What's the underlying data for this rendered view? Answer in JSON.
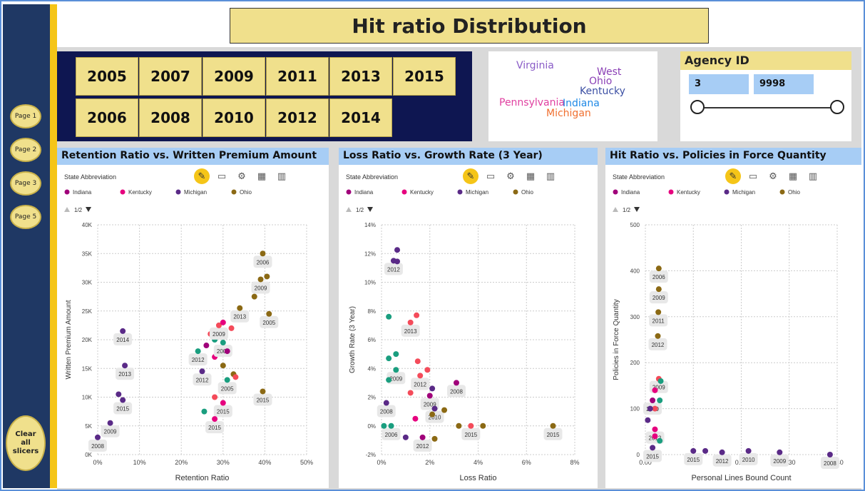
{
  "title": "Hit ratio Distribution",
  "nav": {
    "pages": [
      "Page 1",
      "Page 2",
      "Page 3",
      "Page 5"
    ],
    "clear_label_lines": [
      "Clear",
      "all",
      "slicers"
    ]
  },
  "year_slicer": {
    "row1": [
      "2005",
      "2007",
      "2009",
      "2011",
      "2013",
      "2015"
    ],
    "row2": [
      "2006",
      "2008",
      "2010",
      "2012",
      "2014"
    ]
  },
  "word_cloud": [
    {
      "text": "Virginia",
      "color": "#8a5cc7"
    },
    {
      "text": "West",
      "color": "#8a3fb5"
    },
    {
      "text": "Ohio",
      "color": "#8a3fb5"
    },
    {
      "text": "Kentucky",
      "color": "#3b4fa3"
    },
    {
      "text": "Pennsylvania",
      "color": "#e040a0"
    },
    {
      "text": "Indiana",
      "color": "#1e88e5"
    },
    {
      "text": "Michigan",
      "color": "#f07030"
    }
  ],
  "agency": {
    "title": "Agency ID",
    "min": "3",
    "max": "9998"
  },
  "legend": {
    "title": "State Abbreviation",
    "page": "1/2",
    "items": [
      {
        "name": "Indiana",
        "color": "#a0007a"
      },
      {
        "name": "Kentucky",
        "color": "#e6007e"
      },
      {
        "name": "Michigan",
        "color": "#5a2a87"
      },
      {
        "name": "Ohio",
        "color": "#8b6914"
      }
    ]
  },
  "colors": {
    "teal": "#1a9e7f",
    "red": "#f44b5a"
  },
  "chart_data": [
    {
      "type": "scatter",
      "title": "Retention Ratio vs. Written Premium Amount",
      "xlabel": "Retention Ratio",
      "ylabel": "Written Premium Amount",
      "xlim": [
        0,
        0.5
      ],
      "ylim": [
        0,
        40000
      ],
      "xticks": [
        "0%",
        "10%",
        "20%",
        "30%",
        "40%",
        "50%"
      ],
      "yticks": [
        "0K",
        "5K",
        "10K",
        "15K",
        "20K",
        "25K",
        "30K",
        "35K",
        "40K"
      ],
      "points": [
        {
          "x": 0.0,
          "y": 3000,
          "c": "#5a2a87",
          "label": "2008"
        },
        {
          "x": 0.03,
          "y": 5500,
          "c": "#5a2a87",
          "label": "2009"
        },
        {
          "x": 0.05,
          "y": 10500,
          "c": "#5a2a87",
          "label": ""
        },
        {
          "x": 0.06,
          "y": 9500,
          "c": "#5a2a87",
          "label": "2015"
        },
        {
          "x": 0.065,
          "y": 15500,
          "c": "#5a2a87",
          "label": "2013"
        },
        {
          "x": 0.06,
          "y": 21500,
          "c": "#5a2a87",
          "label": "2014"
        },
        {
          "x": 0.24,
          "y": 18000,
          "c": "#1a9e7f",
          "label": "2012"
        },
        {
          "x": 0.25,
          "y": 14500,
          "c": "#5a2a87",
          "label": "2012"
        },
        {
          "x": 0.26,
          "y": 19000,
          "c": "#a0007a",
          "label": ""
        },
        {
          "x": 0.27,
          "y": 21000,
          "c": "#f44b5a",
          "label": ""
        },
        {
          "x": 0.28,
          "y": 20000,
          "c": "#1a9e7f",
          "label": ""
        },
        {
          "x": 0.28,
          "y": 17000,
          "c": "#e6007e",
          "label": ""
        },
        {
          "x": 0.29,
          "y": 22500,
          "c": "#f44b5a",
          "label": "2009"
        },
        {
          "x": 0.3,
          "y": 23000,
          "c": "#e6007e",
          "label": ""
        },
        {
          "x": 0.3,
          "y": 19500,
          "c": "#1a9e7f",
          "label": "2009"
        },
        {
          "x": 0.31,
          "y": 18000,
          "c": "#a0007a",
          "label": ""
        },
        {
          "x": 0.32,
          "y": 22000,
          "c": "#f44b5a",
          "label": ""
        },
        {
          "x": 0.3,
          "y": 15500,
          "c": "#8b6914",
          "label": ""
        },
        {
          "x": 0.31,
          "y": 13000,
          "c": "#1a9e7f",
          "label": "2005"
        },
        {
          "x": 0.325,
          "y": 14000,
          "c": "#8b6914",
          "label": ""
        },
        {
          "x": 0.33,
          "y": 13500,
          "c": "#f44b5a",
          "label": ""
        },
        {
          "x": 0.28,
          "y": 10000,
          "c": "#f44b5a",
          "label": ""
        },
        {
          "x": 0.3,
          "y": 9000,
          "c": "#e6007e",
          "label": "2015"
        },
        {
          "x": 0.255,
          "y": 7500,
          "c": "#1a9e7f",
          "label": ""
        },
        {
          "x": 0.28,
          "y": 6200,
          "c": "#e6007e",
          "label": "2015"
        },
        {
          "x": 0.34,
          "y": 25500,
          "c": "#8b6914",
          "label": "2013"
        },
        {
          "x": 0.375,
          "y": 27500,
          "c": "#8b6914",
          "label": ""
        },
        {
          "x": 0.39,
          "y": 30500,
          "c": "#8b6914",
          "label": "2009"
        },
        {
          "x": 0.405,
          "y": 31000,
          "c": "#8b6914",
          "label": ""
        },
        {
          "x": 0.395,
          "y": 35000,
          "c": "#8b6914",
          "label": "2006"
        },
        {
          "x": 0.41,
          "y": 24500,
          "c": "#8b6914",
          "label": "2005"
        },
        {
          "x": 0.395,
          "y": 11000,
          "c": "#8b6914",
          "label": "2015"
        }
      ]
    },
    {
      "type": "scatter",
      "title": "Loss Ratio vs. Growth Rate (3 Year)",
      "xlabel": "Loss Ratio",
      "ylabel": "Growth Rate (3 Year)",
      "xlim": [
        0,
        0.08
      ],
      "ylim": [
        -0.02,
        0.14
      ],
      "xticks": [
        "0%",
        "2%",
        "4%",
        "6%",
        "8%"
      ],
      "yticks": [
        "-2%",
        "0%",
        "2%",
        "4%",
        "6%",
        "8%",
        "10%",
        "12%",
        "14%"
      ],
      "points": [
        {
          "x": 0.005,
          "y": 0.115,
          "c": "#5a2a87",
          "label": "2012"
        },
        {
          "x": 0.0065,
          "y": 0.1225,
          "c": "#5a2a87",
          "label": ""
        },
        {
          "x": 0.0065,
          "y": 0.1145,
          "c": "#5a2a87",
          "label": ""
        },
        {
          "x": 0.003,
          "y": 0.076,
          "c": "#1a9e7f",
          "label": ""
        },
        {
          "x": 0.012,
          "y": 0.072,
          "c": "#f44b5a",
          "label": "2013"
        },
        {
          "x": 0.0145,
          "y": 0.077,
          "c": "#f44b5a",
          "label": ""
        },
        {
          "x": 0.003,
          "y": 0.047,
          "c": "#1a9e7f",
          "label": ""
        },
        {
          "x": 0.006,
          "y": 0.05,
          "c": "#1a9e7f",
          "label": ""
        },
        {
          "x": 0.006,
          "y": 0.039,
          "c": "#1a9e7f",
          "label": "2009"
        },
        {
          "x": 0.003,
          "y": 0.032,
          "c": "#1a9e7f",
          "label": ""
        },
        {
          "x": 0.015,
          "y": 0.045,
          "c": "#f44b5a",
          "label": ""
        },
        {
          "x": 0.016,
          "y": 0.035,
          "c": "#f44b5a",
          "label": "2012"
        },
        {
          "x": 0.019,
          "y": 0.039,
          "c": "#f44b5a",
          "label": ""
        },
        {
          "x": 0.021,
          "y": 0.026,
          "c": "#5a2a87",
          "label": ""
        },
        {
          "x": 0.02,
          "y": 0.021,
          "c": "#a0007a",
          "label": "2009"
        },
        {
          "x": 0.031,
          "y": 0.03,
          "c": "#a0007a",
          "label": "2008"
        },
        {
          "x": 0.012,
          "y": 0.023,
          "c": "#f44b5a",
          "label": ""
        },
        {
          "x": 0.002,
          "y": 0.016,
          "c": "#5a2a87",
          "label": "2008"
        },
        {
          "x": 0.014,
          "y": 0.005,
          "c": "#e6007e",
          "label": ""
        },
        {
          "x": 0.022,
          "y": 0.012,
          "c": "#5a2a87",
          "label": "2010"
        },
        {
          "x": 0.021,
          "y": 0.008,
          "c": "#8b6914",
          "label": ""
        },
        {
          "x": 0.026,
          "y": 0.011,
          "c": "#8b6914",
          "label": ""
        },
        {
          "x": 0.004,
          "y": 0.0,
          "c": "#1a9e7f",
          "label": "2006"
        },
        {
          "x": 0.001,
          "y": 0.0,
          "c": "#1a9e7f",
          "label": ""
        },
        {
          "x": 0.01,
          "y": -0.008,
          "c": "#5a2a87",
          "label": ""
        },
        {
          "x": 0.017,
          "y": -0.008,
          "c": "#a0007a",
          "label": "2012"
        },
        {
          "x": 0.022,
          "y": -0.009,
          "c": "#8b6914",
          "label": ""
        },
        {
          "x": 0.032,
          "y": 0.0,
          "c": "#8b6914",
          "label": ""
        },
        {
          "x": 0.037,
          "y": 0.0,
          "c": "#f44b5a",
          "label": "2015"
        },
        {
          "x": 0.042,
          "y": 0.0,
          "c": "#8b6914",
          "label": ""
        },
        {
          "x": 0.071,
          "y": 0.0,
          "c": "#8b6914",
          "label": "2015"
        }
      ]
    },
    {
      "type": "scatter",
      "title": "Hit Ratio vs. Policies in Force Quantity",
      "xlabel": "Personal Lines Bound Count",
      "ylabel": "Policies in Force Quantity",
      "xlim": [
        0,
        0.4
      ],
      "ylim": [
        0,
        500
      ],
      "xticks": [
        "0.00",
        "0.10",
        "0.20",
        "0.30",
        "0.40"
      ],
      "yticks": [
        "0",
        "100",
        "200",
        "300",
        "400",
        "500"
      ],
      "points": [
        {
          "x": 0.028,
          "y": 405,
          "c": "#8b6914",
          "label": "2006"
        },
        {
          "x": 0.028,
          "y": 360,
          "c": "#8b6914",
          "label": "2009"
        },
        {
          "x": 0.027,
          "y": 310,
          "c": "#8b6914",
          "label": "2011"
        },
        {
          "x": 0.026,
          "y": 258,
          "c": "#8b6914",
          "label": "2012"
        },
        {
          "x": 0.028,
          "y": 165,
          "c": "#f44b5a",
          "label": "2009"
        },
        {
          "x": 0.032,
          "y": 160,
          "c": "#1a9e7f",
          "label": ""
        },
        {
          "x": 0.02,
          "y": 140,
          "c": "#e6007e",
          "label": ""
        },
        {
          "x": 0.015,
          "y": 118,
          "c": "#a0007a",
          "label": "2009"
        },
        {
          "x": 0.03,
          "y": 118,
          "c": "#1a9e7f",
          "label": ""
        },
        {
          "x": 0.02,
          "y": 100,
          "c": "#f44b5a",
          "label": ""
        },
        {
          "x": 0.01,
          "y": 100,
          "c": "#5a2a87",
          "label": ""
        },
        {
          "x": 0.005,
          "y": 75,
          "c": "#5a2a87",
          "label": ""
        },
        {
          "x": 0.02,
          "y": 55,
          "c": "#e6007e",
          "label": "2012"
        },
        {
          "x": 0.02,
          "y": 40,
          "c": "#e6007e",
          "label": ""
        },
        {
          "x": 0.03,
          "y": 30,
          "c": "#1a9e7f",
          "label": ""
        },
        {
          "x": 0.015,
          "y": 15,
          "c": "#5a2a87",
          "label": "2015"
        },
        {
          "x": 0.1,
          "y": 8,
          "c": "#5a2a87",
          "label": "2015"
        },
        {
          "x": 0.125,
          "y": 8,
          "c": "#5a2a87",
          "label": ""
        },
        {
          "x": 0.16,
          "y": 5,
          "c": "#5a2a87",
          "label": "2012"
        },
        {
          "x": 0.215,
          "y": 8,
          "c": "#5a2a87",
          "label": "2010"
        },
        {
          "x": 0.28,
          "y": 5,
          "c": "#5a2a87",
          "label": "2009"
        },
        {
          "x": 0.385,
          "y": 0,
          "c": "#5a2a87",
          "label": "2008"
        }
      ]
    }
  ]
}
